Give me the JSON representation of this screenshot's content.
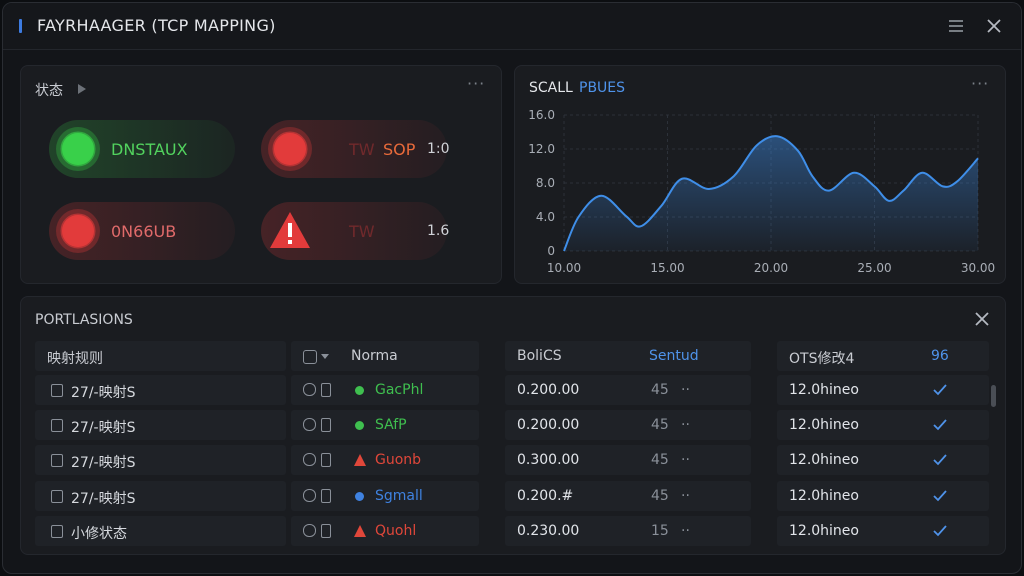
{
  "window": {
    "title": "FAYRHAAGER (TCP MAPPING)"
  },
  "status_panel": {
    "title": "状态",
    "items": [
      {
        "label": "DNSTAUX",
        "color": "#39d04a",
        "icon": "dot"
      },
      {
        "dim": "TW",
        "label": "SOP",
        "value": "1:0",
        "color": "#e23b3b",
        "icon": "dot"
      },
      {
        "label": "0N66UB",
        "color": "#e23b3b",
        "icon": "dot"
      },
      {
        "dim": "TW",
        "value": "1.6",
        "color": "#e23b3b",
        "icon": "warn"
      }
    ]
  },
  "chart_data": {
    "type": "line",
    "title_parts": [
      "SCALL",
      "PBUES"
    ],
    "x": [
      10,
      10.7,
      11.8,
      13,
      13.7,
      14.7,
      15.7,
      17,
      18.2,
      19.3,
      20.3,
      21.3,
      22,
      22.8,
      24,
      25,
      25.7,
      26.4,
      27.3,
      28.3,
      29,
      30
    ],
    "series": [
      {
        "name": "PBUES",
        "color": "#3f8ee8",
        "values": [
          0,
          4.0,
          6.5,
          4.1,
          2.9,
          5.3,
          8.5,
          7.3,
          8.8,
          12.4,
          13.5,
          11.8,
          8.8,
          7.1,
          9.2,
          7.6,
          5.9,
          7.1,
          9.2,
          7.6,
          8.2,
          10.9
        ]
      }
    ],
    "xlim": [
      10,
      30
    ],
    "xticks": [
      {
        "value": 10,
        "label": "10.00"
      },
      {
        "value": 15,
        "label": "15.00"
      },
      {
        "value": 20,
        "label": "20.00"
      },
      {
        "value": 25,
        "label": "25.00"
      },
      {
        "value": 30,
        "label": "30.00"
      }
    ],
    "ylim": [
      0,
      16
    ],
    "yticks": [
      0,
      {
        "value": 4,
        "label": "4.0"
      },
      {
        "value": 8,
        "label": "8.0"
      },
      {
        "value": 12,
        "label": "12.0"
      },
      {
        "value": 16,
        "label": "16.0"
      }
    ],
    "grid": true
  },
  "table": {
    "title": "PORTLASIONS",
    "headers": [
      "映射规则",
      "Norma",
      "BoliCS",
      "Sentud",
      "OTS修改4",
      "96"
    ],
    "rows": [
      {
        "rule": "27/-映射S",
        "state": "GacPhl",
        "state_color": "#3fbf4f",
        "state_icon": "dot",
        "metric": "0.200.00",
        "count": "45",
        "mod": "12.0hineo"
      },
      {
        "rule": "27/-映射S",
        "state": "SAfP",
        "state_color": "#3fbf4f",
        "state_icon": "dot",
        "metric": "0.200.00",
        "count": "45",
        "mod": "12.0hineo"
      },
      {
        "rule": "27/-映射S",
        "state": "Guonb",
        "state_color": "#e0473a",
        "state_icon": "warn",
        "metric": "0.300.00",
        "count": "45",
        "mod": "12.0hineo"
      },
      {
        "rule": "27/-映射S",
        "state": "Sgmall",
        "state_color": "#3f82e0",
        "state_icon": "dot",
        "metric": "0.200.#",
        "count": "45",
        "mod": "12.0hineo"
      },
      {
        "rule": "小修状态",
        "state": "Quohl",
        "state_color": "#e0473a",
        "state_icon": "warn",
        "metric": "0.230.00",
        "count": "15",
        "mod": "12.0hineo"
      }
    ]
  }
}
